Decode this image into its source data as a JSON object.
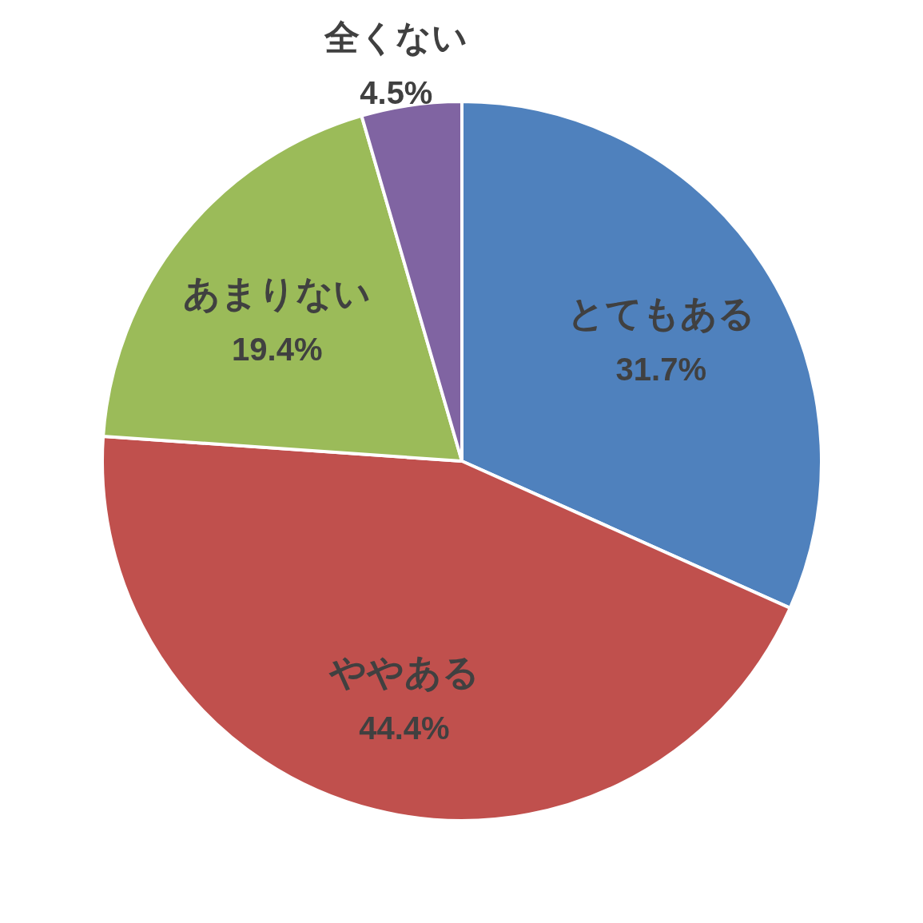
{
  "chart_data": {
    "type": "pie",
    "categories": [
      "とてもある",
      "ややある",
      "あまりない",
      "全くない"
    ],
    "values": [
      31.7,
      44.4,
      19.4,
      4.5
    ],
    "value_labels": [
      "31.7%",
      "44.4%",
      "19.4%",
      "4.5%"
    ],
    "colors": [
      "#4f81bd",
      "#c0504d",
      "#9bbb59",
      "#8064a2"
    ]
  }
}
